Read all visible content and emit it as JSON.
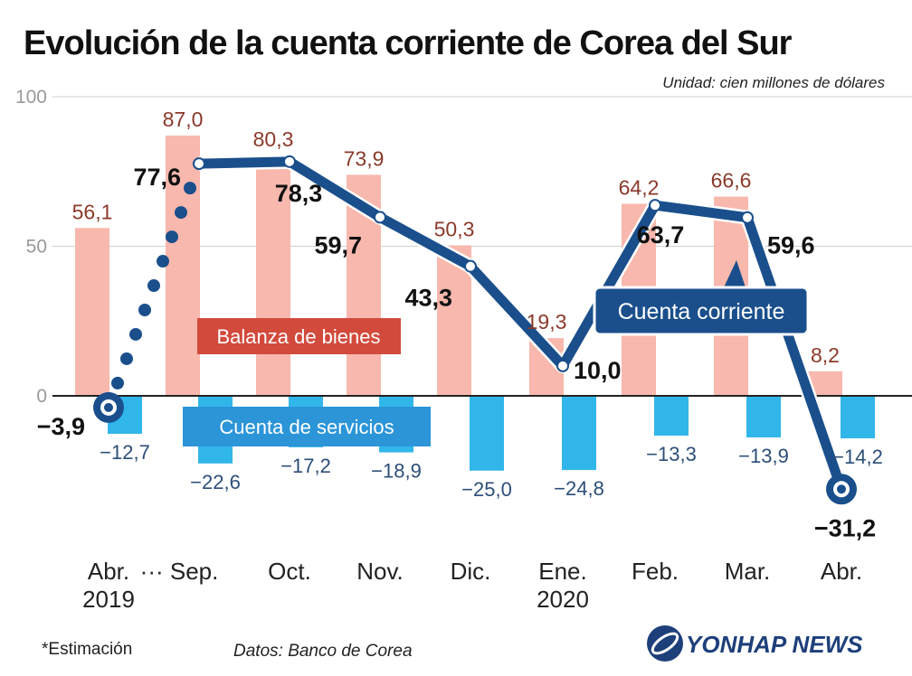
{
  "chart_data": {
    "type": "bar+line",
    "title": "Evolución de la cuenta corriente de Corea del Sur",
    "unit_label": "Unidad: cien millones de dólares",
    "ylim": [
      -40,
      100
    ],
    "y_ticks": [
      {
        "value": 0,
        "label": "0"
      },
      {
        "value": 50,
        "label": "50"
      },
      {
        "value": 100,
        "label": "100"
      }
    ],
    "categories": [
      "Abr. 2019",
      "Sep.",
      "Oct.",
      "Nov.",
      "Dic.",
      "Ene. 2020",
      "Feb.",
      "Mar.",
      "Abr."
    ],
    "x_labels": [
      {
        "line1": "Abr.",
        "line2": "2019"
      },
      {
        "line1": "··· Sep.",
        "line2": ""
      },
      {
        "line1": "Oct.",
        "line2": ""
      },
      {
        "line1": "Nov.",
        "line2": ""
      },
      {
        "line1": "Dic.",
        "line2": ""
      },
      {
        "line1": "Ene.",
        "line2": "2020"
      },
      {
        "line1": "Feb.",
        "line2": ""
      },
      {
        "line1": "Mar.",
        "line2": ""
      },
      {
        "line1": "Abr.",
        "line2": ""
      }
    ],
    "series": [
      {
        "name": "Balanza de bienes",
        "kind": "bar",
        "color": "#f8b8ad",
        "values": [
          56.1,
          87.0,
          80.3,
          73.9,
          50.3,
          19.3,
          64.2,
          66.6,
          8.2
        ],
        "labels": [
          "56,1",
          "87,0",
          "80,3",
          "73,9",
          "50,3",
          "19,3",
          "64,2",
          "66,6",
          "8,2"
        ]
      },
      {
        "name": "Cuenta de servicios",
        "kind": "bar",
        "color": "#31b6ea",
        "values": [
          -12.7,
          -22.6,
          -17.2,
          -18.9,
          -25.0,
          -24.8,
          -13.3,
          -13.9,
          -14.2
        ],
        "labels": [
          "−12,7",
          "−22,6",
          "−17,2",
          "−18,9",
          "−25,0",
          "−24,8",
          "−13,3",
          "−13,9",
          "−14,2"
        ]
      },
      {
        "name": "Cuenta corriente",
        "kind": "line",
        "color": "#1a4f8c",
        "values": [
          -3.9,
          77.6,
          78.3,
          59.7,
          43.3,
          10.0,
          63.7,
          59.6,
          -31.2
        ],
        "labels": [
          "−3,9",
          "77,6",
          "78,3",
          "59,7",
          "43,3",
          "10,0",
          "63,7",
          "59,6",
          "−31,2"
        ]
      }
    ],
    "legend": {
      "goods": {
        "label": "Balanza de bienes",
        "color": "#d24a3c"
      },
      "services": {
        "label": "Cuenta de servicios",
        "color": "#2b95d8"
      },
      "current": {
        "label": "Cuenta corriente",
        "color": "#1a4f8c"
      }
    }
  },
  "footer": {
    "note": "*Estimación",
    "source": "Datos: Banco de Corea",
    "logo_text": "YONHAP NEWS"
  }
}
